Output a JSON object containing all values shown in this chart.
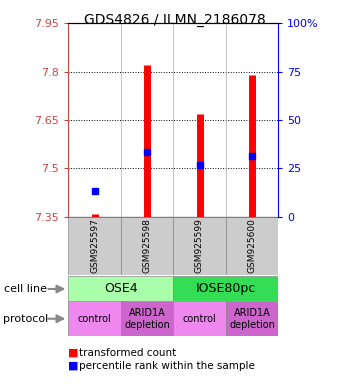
{
  "title": "GDS4826 / ILMN_2186078",
  "samples": [
    "GSM925597",
    "GSM925598",
    "GSM925599",
    "GSM925600"
  ],
  "red_values": [
    7.36,
    7.82,
    7.67,
    7.79
  ],
  "blue_values": [
    7.43,
    7.55,
    7.51,
    7.54
  ],
  "red_base": 7.35,
  "ylim_left": [
    7.35,
    7.95
  ],
  "ylim_right": [
    0,
    100
  ],
  "yticks_left": [
    7.35,
    7.5,
    7.65,
    7.8,
    7.95
  ],
  "yticks_right": [
    0,
    25,
    50,
    75,
    100
  ],
  "ytick_labels_left": [
    "7.35",
    "7.5",
    "7.65",
    "7.8",
    "7.95"
  ],
  "ytick_labels_right": [
    "0",
    "25",
    "50",
    "75",
    "100%"
  ],
  "cell_line_groups": [
    {
      "label": "OSE4",
      "start": 0,
      "end": 2,
      "color": "#AAFFAA"
    },
    {
      "label": "IOSE80pc",
      "start": 2,
      "end": 4,
      "color": "#33DD55"
    }
  ],
  "protocol_groups": [
    {
      "label": "control",
      "start": 0,
      "end": 1,
      "color": "#EE88EE"
    },
    {
      "label": "ARID1A\ndepletion",
      "start": 1,
      "end": 2,
      "color": "#CC66CC"
    },
    {
      "label": "control",
      "start": 2,
      "end": 3,
      "color": "#EE88EE"
    },
    {
      "label": "ARID1A\ndepletion",
      "start": 3,
      "end": 4,
      "color": "#CC66CC"
    }
  ],
  "legend_red_label": "transformed count",
  "legend_blue_label": "percentile rank within the sample",
  "cell_line_label": "cell line",
  "protocol_label": "protocol",
  "marker_size": 5,
  "bg_color": "#CCCCCC",
  "plot_bg": "#FFFFFF",
  "left_color": "#CC4444",
  "right_color": "#0000EE",
  "bar_linewidth": 5
}
